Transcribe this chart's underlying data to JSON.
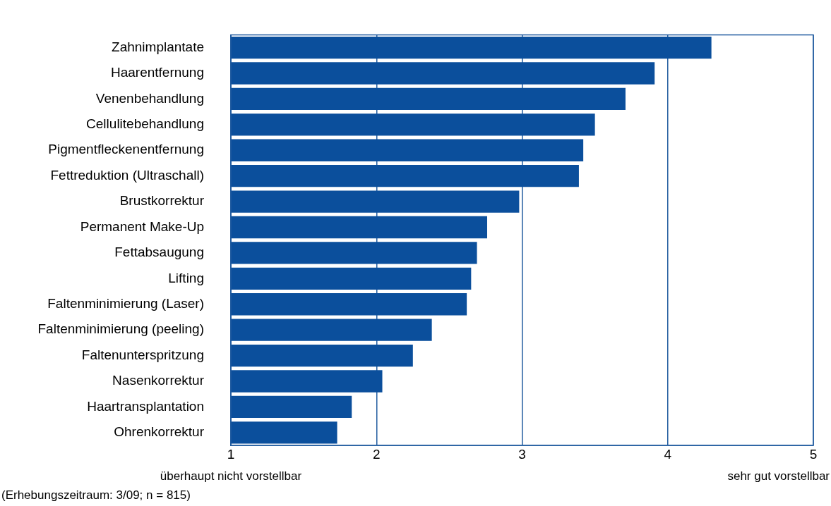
{
  "chart_data": {
    "type": "bar",
    "orientation": "horizontal",
    "categories": [
      "Zahnimplantate",
      "Haarentfernung",
      "Venenbehandlung",
      "Cellulitebehandlung",
      "Pigmentfleckenentfernung",
      "Fettreduktion (Ultraschall)",
      "Brustkorrektur",
      "Permanent Make-Up",
      "Fettabsaugung",
      "Lifting",
      "Faltenminimierung (Laser)",
      "Faltenminimierung (peeling)",
      "Faltenunterspritzung",
      "Nasenkorrektur",
      "Haartransplantation",
      "Ohrenkorrektur"
    ],
    "values": [
      4.3,
      3.91,
      3.71,
      3.5,
      3.42,
      3.39,
      2.98,
      2.76,
      2.69,
      2.65,
      2.62,
      2.38,
      2.25,
      2.04,
      1.83,
      1.73
    ],
    "color": "#0b4f9c",
    "xlim": [
      1,
      5
    ],
    "xticks": [
      1,
      2,
      3,
      4,
      5
    ],
    "grid": "x",
    "annotations": [
      "überhaupt nicht vorstellbar",
      "sehr gut vorstellbar",
      "(Erhebungszeitraum: 3/09; n = 815)"
    ]
  }
}
